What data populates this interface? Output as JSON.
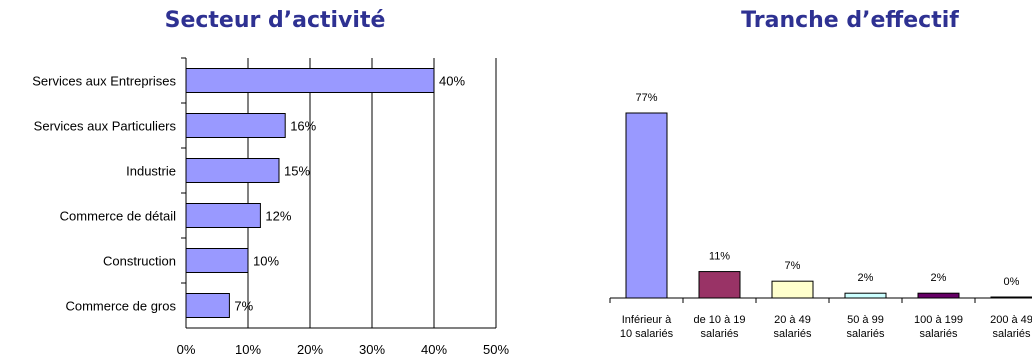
{
  "chart_data": [
    {
      "type": "bar",
      "orientation": "horizontal",
      "title": "Secteur d’activité",
      "categories": [
        "Services aux Entreprises",
        "Services aux Particuliers",
        "Industrie",
        "Commerce de détail",
        "Construction",
        "Commerce de gros"
      ],
      "values": [
        40,
        16,
        15,
        12,
        10,
        7
      ],
      "value_labels": [
        "40%",
        "16%",
        "15%",
        "12%",
        "10%",
        "7%"
      ],
      "xlim": [
        0,
        50
      ],
      "x_ticks": [
        "0%",
        "10%",
        "20%",
        "30%",
        "40%",
        "50%"
      ],
      "grid": true,
      "colors": {
        "bar": "#9999ff",
        "stroke": "#000000"
      }
    },
    {
      "type": "bar",
      "orientation": "vertical",
      "title": "Tranche d’effectif",
      "categories": [
        [
          "Inférieur à",
          "10 salariés"
        ],
        [
          "de 10 à 19",
          "salariés"
        ],
        [
          "20 à 49",
          "salariés"
        ],
        [
          "50 à 99",
          "salariés"
        ],
        [
          "100 à 199",
          "salariés"
        ],
        [
          "200 à 49",
          "salariés"
        ]
      ],
      "values": [
        77,
        11,
        7,
        2,
        2,
        0
      ],
      "value_labels": [
        "77%",
        "11%",
        "7%",
        "2%",
        "2%",
        "0%"
      ],
      "ylim": [
        0,
        77
      ],
      "grid": false,
      "colors": [
        "#9999ff",
        "#993366",
        "#ffffcc",
        "#ccffff",
        "#660066",
        "#ff8080"
      ]
    }
  ]
}
